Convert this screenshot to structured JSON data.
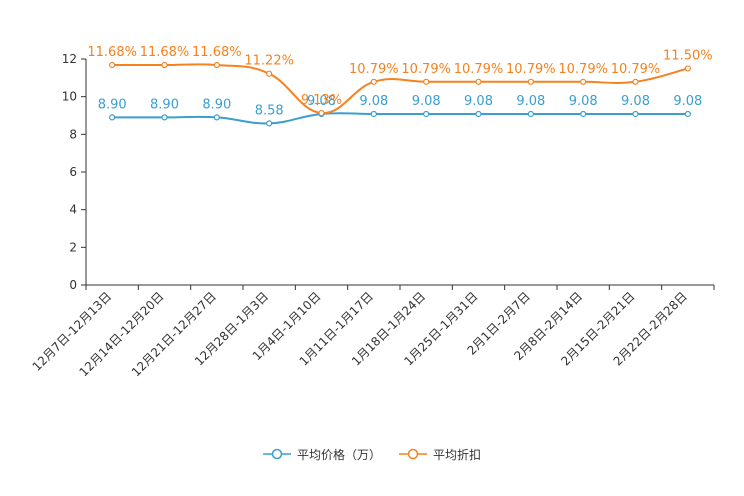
{
  "chart_data": {
    "type": "line",
    "title": "",
    "xlabel": "",
    "ylabel": "",
    "ylim": [
      0,
      12
    ],
    "yticks": [
      "0",
      "2",
      "4",
      "6",
      "8",
      "10",
      "12"
    ],
    "categories": [
      "12月7日-12月13日",
      "12月14日-12月20日",
      "12月21日-12月27日",
      "12月28日-1月3日",
      "1月4日-1月10日",
      "1月11日-1月17日",
      "1月18日-1月24日",
      "1月25日-1月31日",
      "2月1日-2月7日",
      "2月8日-2月14日",
      "2月15日-2月21日",
      "2月22日-2月28日"
    ],
    "series": [
      {
        "name": "平均价格（万）",
        "color": "#3a9fd0",
        "values": [
          8.9,
          8.9,
          8.9,
          8.58,
          9.08,
          9.08,
          9.08,
          9.08,
          9.08,
          9.08,
          9.08,
          9.08
        ],
        "labels": [
          "8.90",
          "8.90",
          "8.90",
          "8.58",
          "9.08",
          "9.08",
          "9.08",
          "9.08",
          "9.08",
          "9.08",
          "9.08",
          "9.08"
        ]
      },
      {
        "name": "平均折扣",
        "color": "#f5821f",
        "values": [
          11.68,
          11.68,
          11.68,
          11.22,
          9.13,
          10.79,
          10.79,
          10.79,
          10.79,
          10.79,
          10.79,
          11.5
        ],
        "labels": [
          "11.68%",
          "11.68%",
          "11.68%",
          "11.22%",
          "9.13%",
          "10.79%",
          "10.79%",
          "10.79%",
          "10.79%",
          "10.79%",
          "10.79%",
          "11.50%"
        ]
      }
    ],
    "legend_position": "bottom"
  }
}
